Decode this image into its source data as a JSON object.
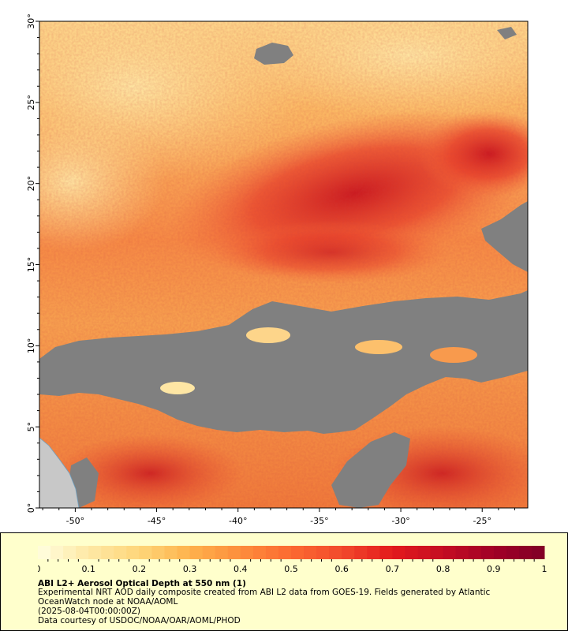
{
  "map": {
    "lon_ticks": [
      "-50°",
      "-45°",
      "-40°",
      "-35°",
      "-30°",
      "-25°"
    ],
    "lon_values": [
      -50,
      -45,
      -40,
      -35,
      -30,
      -25
    ],
    "lat_ticks": [
      "0°",
      "5°",
      "10°",
      "15°",
      "20°",
      "25°",
      "30°"
    ],
    "lat_values": [
      0,
      5,
      10,
      15,
      20,
      25,
      30
    ],
    "extent": {
      "lon": [
        -52.2,
        -22.2
      ],
      "lat": [
        0,
        30
      ]
    },
    "colors": {
      "no_data_cloud": "#808080",
      "land": "#c8c8c8",
      "low_aod": "#fee9a8",
      "mid_aod": "#f57f3c",
      "high_aod": "#c0101c",
      "max_aod": "#7f0024"
    },
    "regions": {
      "cloud_band_lat": [
        5,
        11
      ],
      "high_aod_plume_lat": [
        15,
        24
      ]
    }
  },
  "colorbar": {
    "tick_labels": [
      "0",
      "0.1",
      "0.2",
      "0.3",
      "0.4",
      "0.5",
      "0.6",
      "0.7",
      "0.8",
      "0.9",
      "1"
    ],
    "min": 0,
    "max": 1,
    "stops": [
      "#ffffe0",
      "#fee8a5",
      "#fed67a",
      "#feb24c",
      "#fd8d3c",
      "#fc6a30",
      "#f24a2c",
      "#e31a1c",
      "#c40d23",
      "#a10026",
      "#800026"
    ]
  },
  "caption": {
    "title": "ABI L2+ Aerosol Optical Depth at 550 nm (1)",
    "line1": "Experimental NRT AOD daily composite created from ABI L2 data from GOES-19. Fields generated by Atlantic",
    "line2": "OceanWatch node at NOAA/AOML",
    "line3": "(2025-08-04T00:00:00Z)",
    "line4": "Data courtesy of USDOC/NOAA/OAR/AOML/PHOD"
  }
}
